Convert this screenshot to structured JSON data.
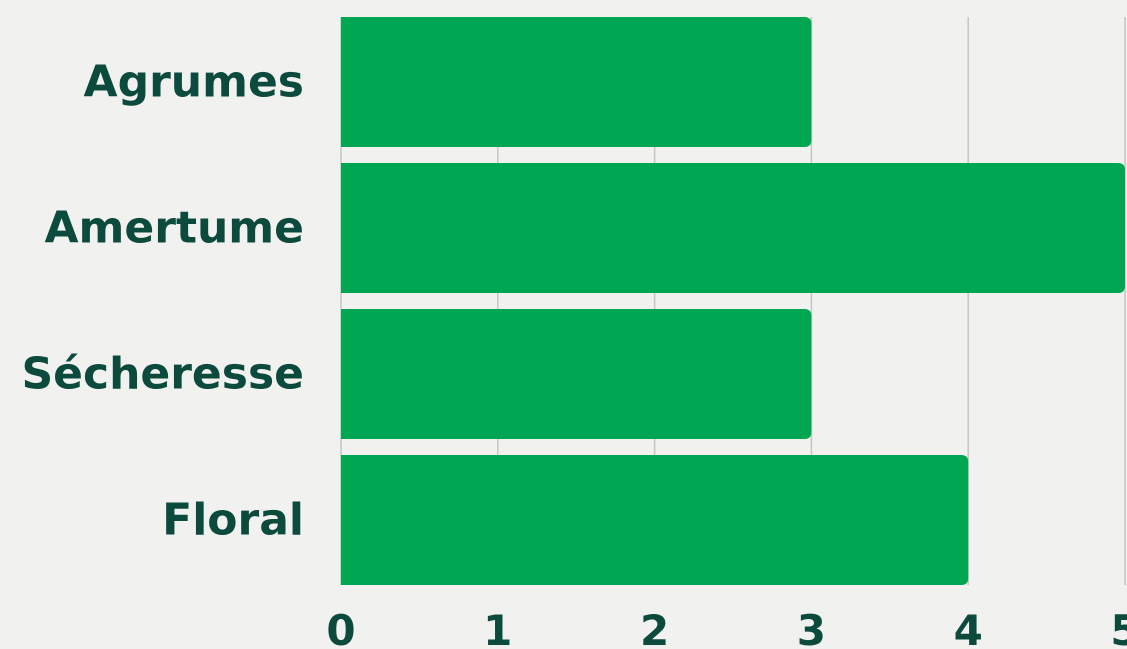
{
  "chart_data": {
    "type": "bar",
    "orientation": "horizontal",
    "title": "",
    "xlabel": "",
    "ylabel": "",
    "categories": [
      "Agrumes",
      "Amertume",
      "Sécheresse",
      "Floral"
    ],
    "values": [
      3,
      5,
      3,
      4
    ],
    "xlim": [
      0,
      5
    ],
    "x_ticks": [
      "0",
      "1",
      "2",
      "3",
      "4",
      "5"
    ],
    "grid": true,
    "legend": "none",
    "colors": {
      "bar": "#00a651",
      "text": "#0b4a3c",
      "grid": "#c3c8c4",
      "background": "#f1f1ef"
    }
  }
}
